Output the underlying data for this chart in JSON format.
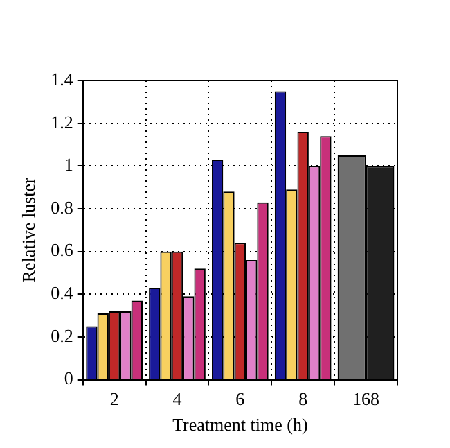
{
  "chart_data": {
    "type": "bar",
    "xlabel": "Treatment time (h)",
    "ylabel": "Relative luster",
    "categories": [
      "2",
      "4",
      "6",
      "8",
      "168"
    ],
    "series": [
      {
        "color": "#1a1a9a",
        "values": [
          0.25,
          0.43,
          1.03,
          1.35,
          null
        ]
      },
      {
        "color": "#f8d060",
        "values": [
          0.31,
          0.6,
          0.88,
          0.89,
          null
        ]
      },
      {
        "color": "#c02828",
        "values": [
          0.32,
          0.6,
          0.64,
          1.16,
          null
        ]
      },
      {
        "color": "#e080c8",
        "values": [
          0.32,
          0.39,
          0.56,
          1.0,
          null
        ]
      },
      {
        "color": "#c8307a",
        "values": [
          0.37,
          0.52,
          0.83,
          1.14,
          null
        ]
      },
      {
        "color": "#707070",
        "values": [
          null,
          null,
          null,
          null,
          1.05
        ]
      },
      {
        "color": "#202020",
        "values": [
          null,
          null,
          null,
          null,
          1.0
        ]
      }
    ],
    "ylim": [
      0,
      1.4
    ],
    "yticks": [
      0,
      0.2,
      0.4,
      0.6,
      0.8,
      1,
      1.2,
      1.4
    ],
    "grid": true,
    "legend": false
  }
}
